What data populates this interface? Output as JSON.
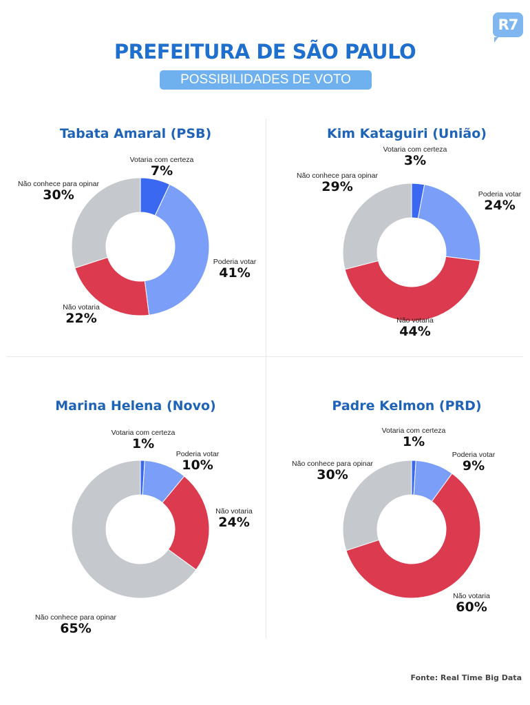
{
  "logo": "R7",
  "header": {
    "title": "PREFEITURA DE SÃO PAULO",
    "subtitle": "POSSIBILIDADES DE VOTO"
  },
  "colors": {
    "Votaria com certeza": "#3a68f0",
    "Poderia votar": "#7b9ef8",
    "Não votaria": "#dc3b4f",
    "Não conhece para opinar": "#c5c8cc",
    "title": "#1f6fce"
  },
  "chart_data": [
    {
      "type": "pie",
      "title": "Tabata Amaral (PSB)",
      "categories": [
        "Votaria com certeza",
        "Poderia votar",
        "Não votaria",
        "Não conhece para opinar"
      ],
      "values": [
        7,
        41,
        22,
        30
      ],
      "unit": "%"
    },
    {
      "type": "pie",
      "title": "Kim Kataguiri (União)",
      "categories": [
        "Votaria com certeza",
        "Poderia votar",
        "Não votaria",
        "Não conhece para opinar"
      ],
      "values": [
        3,
        24,
        44,
        29
      ],
      "unit": "%"
    },
    {
      "type": "pie",
      "title": "Marina Helena (Novo)",
      "categories": [
        "Votaria com certeza",
        "Poderia votar",
        "Não votaria",
        "Não conhece para opinar"
      ],
      "values": [
        1,
        10,
        24,
        65
      ],
      "unit": "%"
    },
    {
      "type": "pie",
      "title": "Padre Kelmon (PRD)",
      "categories": [
        "Votaria com certeza",
        "Poderia votar",
        "Não votaria",
        "Não conhece para opinar"
      ],
      "values": [
        1,
        9,
        60,
        30
      ],
      "unit": "%"
    }
  ],
  "source": "Fonte: Real Time Big Data"
}
